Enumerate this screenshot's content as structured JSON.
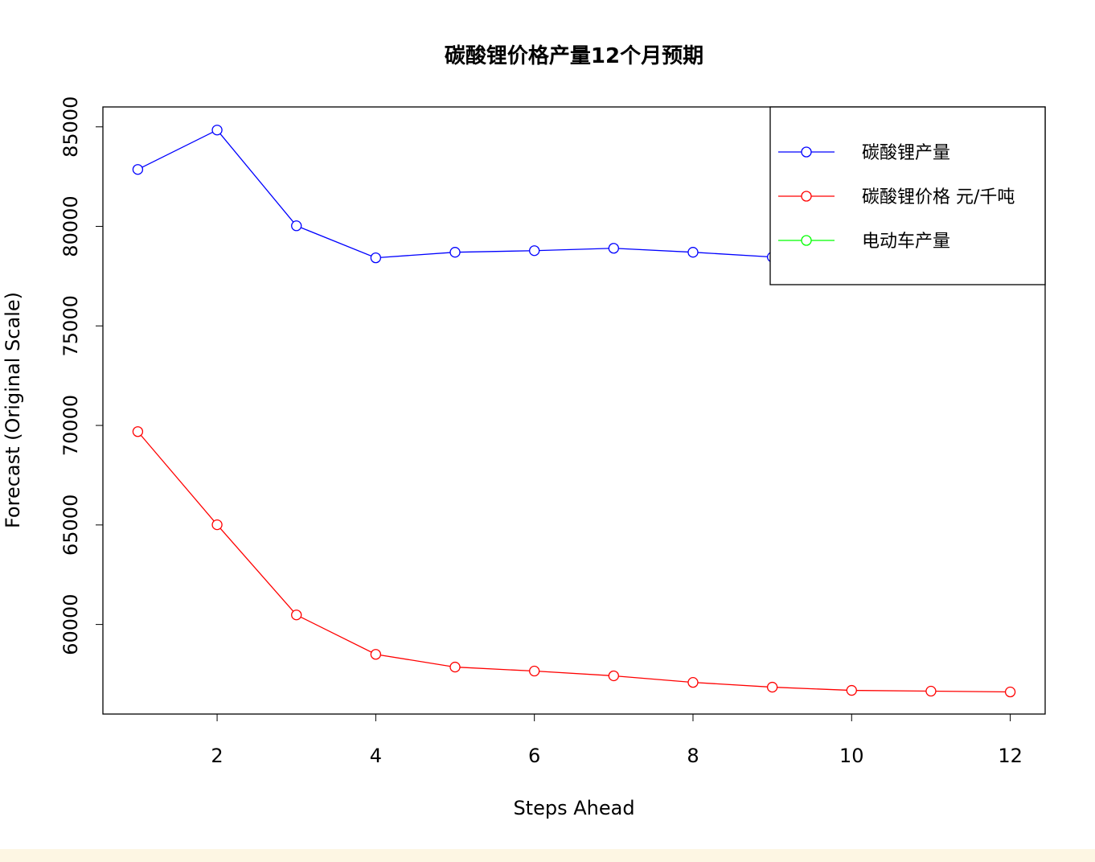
{
  "chart_data": {
    "type": "line",
    "title": "碳酸锂价格产量12个月预期",
    "x_label": "Steps Ahead",
    "y_label": "Forecast (Original Scale)",
    "x": [
      1,
      2,
      3,
      4,
      5,
      6,
      7,
      8,
      9,
      10,
      11,
      12
    ],
    "series": [
      {
        "name": "碳酸锂产量",
        "color": "#0000ff",
        "values": [
          82860,
          84840,
          80030,
          78420,
          78700,
          78780,
          78900,
          78700,
          78460,
          78400,
          78380,
          78370
        ]
      },
      {
        "name": "碳酸锂价格 元/千吨",
        "color": "#ff0000",
        "values": [
          69690,
          65010,
          60480,
          58500,
          57860,
          57660,
          57420,
          57090,
          56850,
          56690,
          56650,
          56610
        ]
      },
      {
        "name": "电动车产量",
        "color": "#00ff00",
        "values": [
          null,
          null,
          null,
          null,
          null,
          null,
          null,
          null,
          null,
          null,
          null,
          null
        ]
      }
    ],
    "xlim": [
      0.56,
      12.44
    ],
    "xticks": [
      2,
      4,
      6,
      8,
      10,
      12
    ],
    "ylim": [
      55500,
      86000
    ],
    "yticks": [
      60000,
      65000,
      70000,
      75000,
      80000,
      85000
    ],
    "legend": "top-right"
  }
}
